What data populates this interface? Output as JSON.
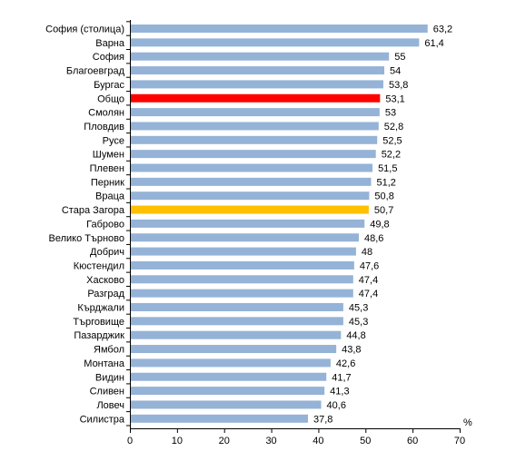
{
  "chart_data": {
    "type": "bar",
    "orientation": "horizontal",
    "categories": [
      "София (столица)",
      "Варна",
      "София",
      "Благоевград",
      "Бургас",
      "Общо",
      "Смолян",
      "Пловдив",
      "Русе",
      "Шумен",
      "Плевен",
      "Перник",
      "Враца",
      "Стара Загора",
      "Габрово",
      "Велико Търново",
      "Добрич",
      "Кюстендил",
      "Хасково",
      "Разград",
      "Кърджали",
      "Търговище",
      "Пазарджик",
      "Ямбол",
      "Монтана",
      "Видин",
      "Сливен",
      "Ловеч",
      "Силистра"
    ],
    "values": [
      63.2,
      61.4,
      55,
      54,
      53.8,
      53.1,
      53,
      52.8,
      52.5,
      52.2,
      51.5,
      51.2,
      50.8,
      50.7,
      49.8,
      48.6,
      48,
      47.6,
      47.4,
      47.4,
      45.3,
      45.3,
      44.8,
      43.8,
      42.6,
      41.7,
      41.3,
      40.6,
      37.8
    ],
    "value_labels": [
      "63,2",
      "61,4",
      "55",
      "54",
      "53,8",
      "53,1",
      "53",
      "52,8",
      "52,5",
      "52,2",
      "51,5",
      "51,2",
      "50,8",
      "50,7",
      "49,8",
      "48,6",
      "48",
      "47,6",
      "47,4",
      "47,4",
      "45,3",
      "45,3",
      "44,8",
      "43,8",
      "42,6",
      "41,7",
      "41,3",
      "40,6",
      "37,8"
    ],
    "xlim": [
      0,
      70
    ],
    "x_ticks": [
      "0",
      "10",
      "20",
      "30",
      "40",
      "50",
      "60",
      "70"
    ],
    "xunit": "%",
    "grid": false,
    "colors": {
      "default": "#95b3d7",
      "highlight_total": "#ff0000",
      "highlight_stara_zagora": "#ffc000"
    },
    "highlights": {
      "Общо": "highlight_total",
      "Стара Загора": "highlight_stara_zagora"
    }
  }
}
